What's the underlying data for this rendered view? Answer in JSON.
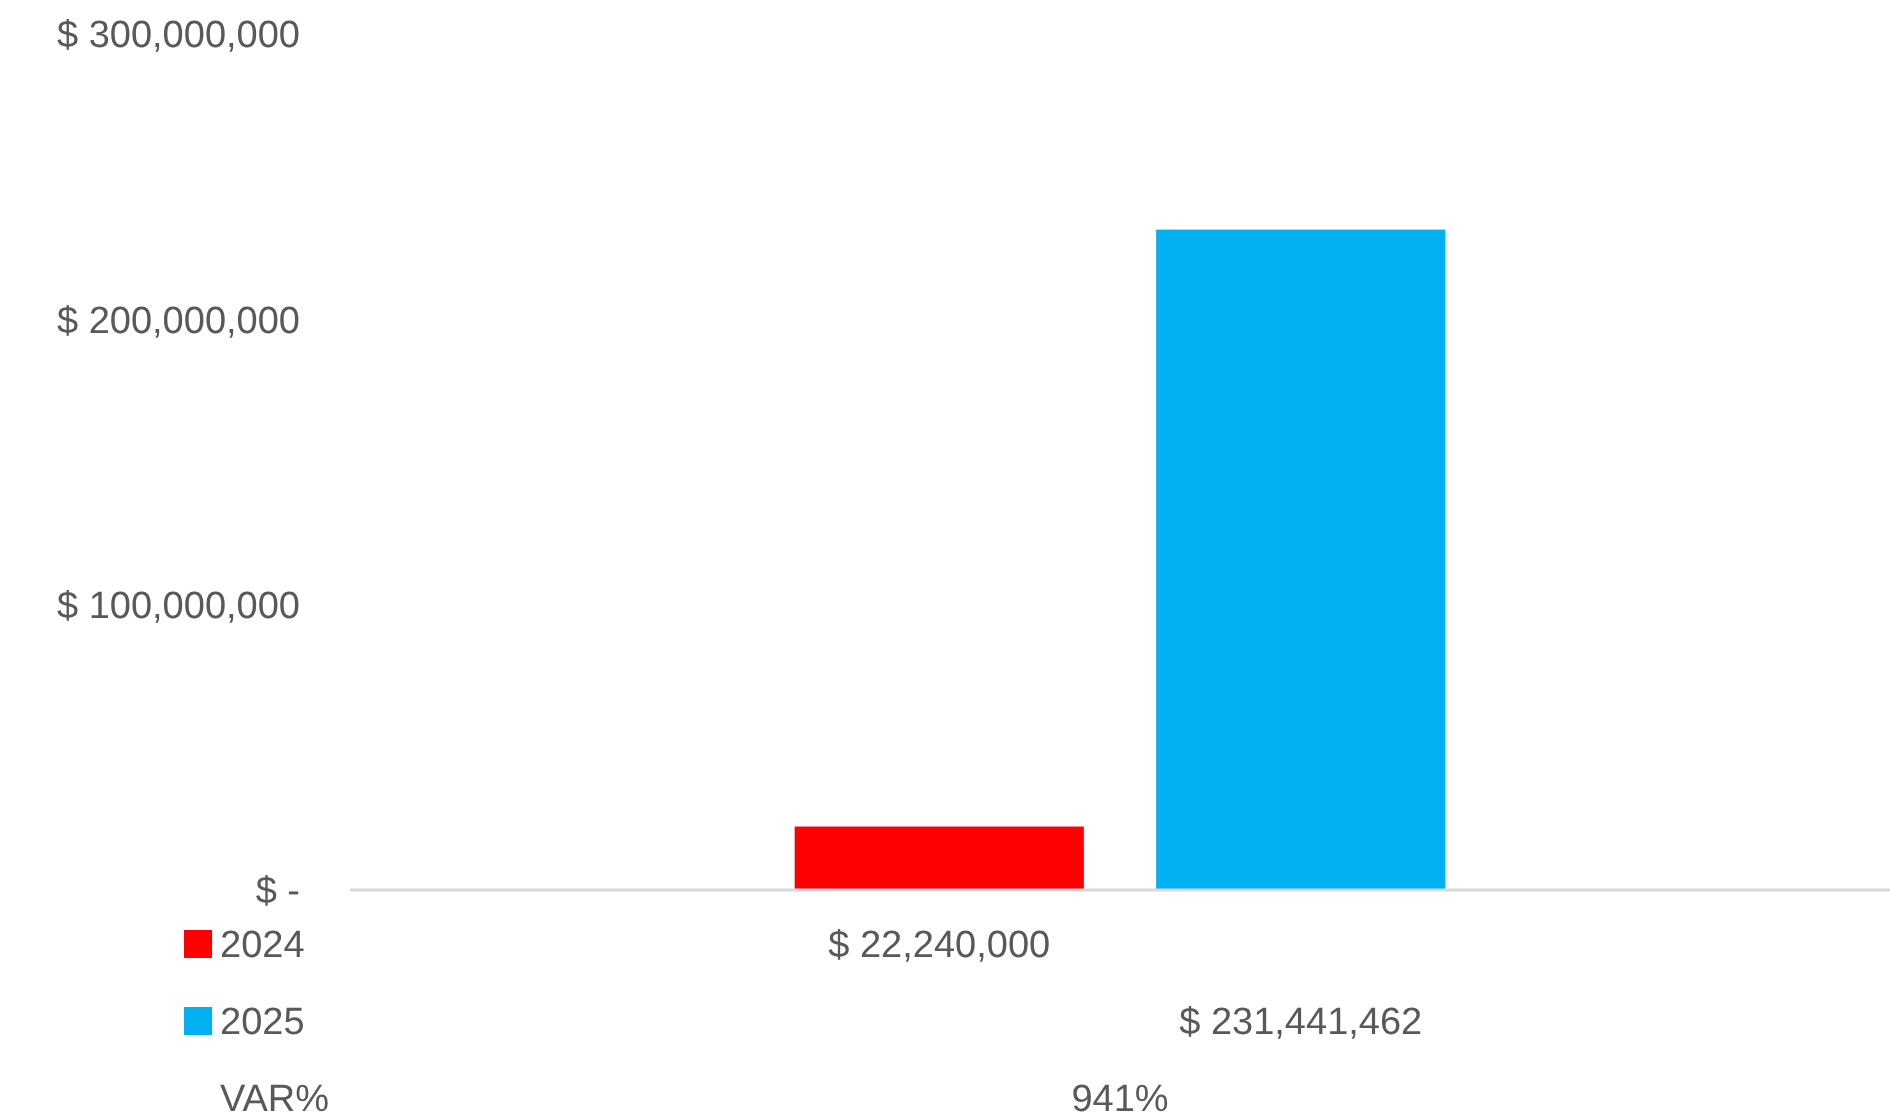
{
  "chart_data": {
    "type": "bar",
    "categories": [
      null
    ],
    "series": [
      {
        "name": "2024",
        "color": "#ff0000",
        "values": [
          22240000
        ],
        "value_labels": [
          "$ 22,240,000"
        ]
      },
      {
        "name": "2025",
        "color": "#00b0f0",
        "values": [
          231441462
        ],
        "value_labels": [
          "$ 231,441,462"
        ]
      }
    ],
    "ylim": [
      0,
      300000000
    ],
    "yticks": [
      {
        "value": 0,
        "label": "$ -"
      },
      {
        "value": 100000000,
        "label": "$ 100,000,000"
      },
      {
        "value": 200000000,
        "label": "$ 200,000,000"
      },
      {
        "value": 300000000,
        "label": "$ 300,000,000"
      }
    ],
    "annotations": [
      "VAR%",
      "941%"
    ],
    "legend": "bottom",
    "grid": false
  }
}
